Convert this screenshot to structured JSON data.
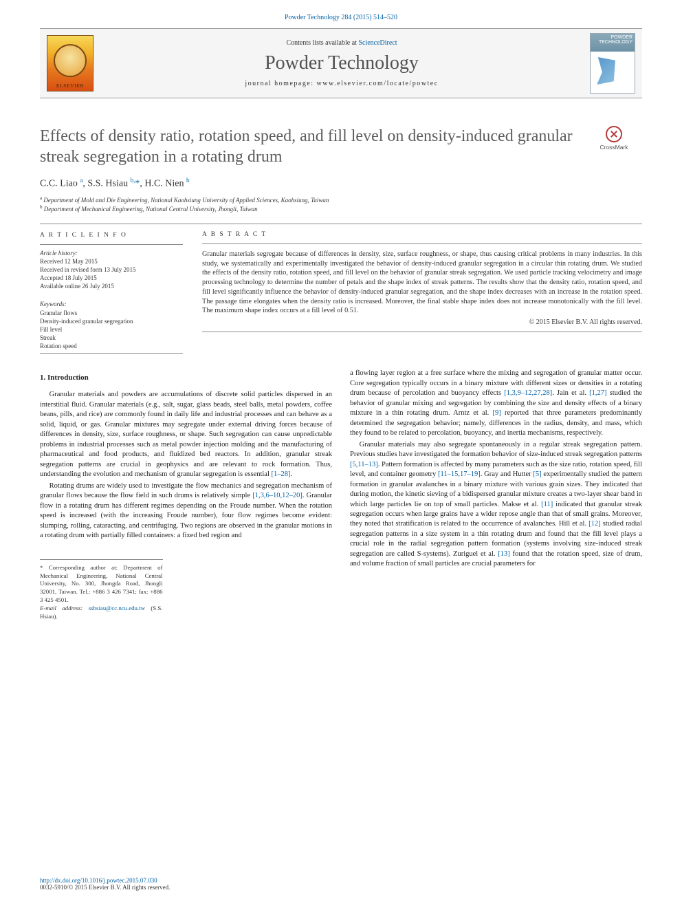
{
  "journal_ref_link": "Powder Technology 284 (2015) 514–520",
  "banner": {
    "contents_prefix": "Contents lists available at ",
    "contents_link": "ScienceDirect",
    "journal_name": "Powder Technology",
    "homepage_label": "journal homepage: www.elsevier.com/locate/powtec",
    "cover_label": "POWDER\nTECHNOLOGY"
  },
  "crossmark_label": "CrossMark",
  "article": {
    "title": "Effects of density ratio, rotation speed, and fill level on density-induced granular streak segregation in a rotating drum",
    "authors_html": "C.C. Liao <sup>a</sup>, S.S. Hsiau <sup>b,</sup><a>*</a>, H.C. Nien <sup>b</sup>",
    "affiliations": [
      {
        "marker": "a",
        "text": "Department of Mold and Die Engineering, National Kaohsiung University of Applied Sciences, Kaohsiung, Taiwan"
      },
      {
        "marker": "b",
        "text": "Department of Mechanical Engineering, National Central University, Jhongli, Taiwan"
      }
    ]
  },
  "article_info": {
    "heading": "A R T I C L E   I N F O",
    "history_label": "Article history:",
    "received": "Received 12 May 2015",
    "revised": "Received in revised form 13 July 2015",
    "accepted": "Accepted 18 July 2015",
    "online": "Available online 26 July 2015",
    "keywords_label": "Keywords:",
    "keywords": [
      "Granular flows",
      "Density-induced granular segregation",
      "Fill level",
      "Streak",
      "Rotation speed"
    ]
  },
  "abstract": {
    "heading": "A B S T R A C T",
    "text": "Granular materials segregate because of differences in density, size, surface roughness, or shape, thus causing critical problems in many industries. In this study, we systematically and experimentally investigated the behavior of density-induced granular segregation in a circular thin rotating drum. We studied the effects of the density ratio, rotation speed, and fill level on the behavior of granular streak segregation. We used particle tracking velocimetry and image processing technology to determine the number of petals and the shape index of streak patterns. The results show that the density ratio, rotation speed, and fill level significantly influence the behavior of density-induced granular segregation, and the shape index decreases with an increase in the rotation speed. The passage time elongates when the density ratio is increased. Moreover, the final stable shape index does not increase monotonically with the fill level. The maximum shape index occurs at a fill level of 0.51.",
    "copyright": "© 2015 Elsevier B.V. All rights reserved."
  },
  "body": {
    "intro_heading": "1. Introduction",
    "p1": "Granular materials and powders are accumulations of discrete solid particles dispersed in an interstitial fluid. Granular materials (e.g., salt, sugar, glass beads, steel balls, metal powders, coffee beans, pills, and rice) are commonly found in daily life and industrial processes and can behave as a solid, liquid, or gas. Granular mixtures may segregate under external driving forces because of differences in density, size, surface roughness, or shape. Such segregation can cause unpredictable problems in industrial processes such as metal powder injection molding and the manufacturing of pharmaceutical and food products, and fluidized bed reactors. In addition, granular streak segregation patterns are crucial in geophysics and are relevant to rock formation. Thus, understanding the evolution and mechanism of granular segregation is essential ",
    "cite1": "[1–28]",
    "p1_tail": ".",
    "p2": "Rotating drums are widely used to investigate the flow mechanics and segregation mechanism of granular flows because the flow field in such drums is relatively simple ",
    "cite2": "[1,3,6–10,12–20]",
    "p2_tail": ". Granular flow in a rotating drum has different regimes depending on the Froude number. When the rotation speed is increased (with the increasing Froude number), four flow regimes become evident: slumping, rolling, cataracting, and centrifuging. Two regions are observed in the granular motions in a rotating drum with partially filled containers: a fixed bed region and ",
    "p3": "a flowing layer region at a free surface where the mixing and segregation of granular matter occur. Core segregation typically occurs in a binary mixture with different sizes or densities in a rotating drum because of percolation and buoyancy effects ",
    "cite3": "[1,3,9–12,27,28]",
    "p3_tail1": ". Jain et al. ",
    "cite4": "[1,27]",
    "p3_tail2": " studied the behavior of granular mixing and segregation by combining the size and density effects of a binary mixture in a thin rotating drum. Arntz et al. ",
    "cite5": "[9]",
    "p3_tail3": " reported that three parameters predominantly determined the segregation behavior; namely, differences in the radius, density, and mass, which they found to be related to percolation, buoyancy, and inertia mechanisms, respectively.",
    "p4": "Granular materials may also segregate spontaneously in a regular streak segregation pattern. Previous studies have investigated the formation behavior of size-induced streak segregation patterns ",
    "cite6": "[5,11–13]",
    "p4_tail1": ". Pattern formation is affected by many parameters such as the size ratio, rotation speed, fill level, and container geometry ",
    "cite7": "[11–15,17–19]",
    "p4_tail2": ". Gray and Hutter ",
    "cite8": "[5]",
    "p4_tail3": " experimentally studied the pattern formation in granular avalanches in a binary mixture with various grain sizes. They indicated that during motion, the kinetic sieving of a bidispersed granular mixture creates a two-layer shear band in which large particles lie on top of small particles. Makse et al. ",
    "cite9": "[11]",
    "p4_tail4": " indicated that granular streak segregation occurs when large grains have a wider repose angle than that of small grains. Moreover, they noted that stratification is related to the occurrence of avalanches. Hill et al. ",
    "cite10": "[12]",
    "p4_tail5": " studied radial segregation patterns in a size system in a thin rotating drum and found that the fill level plays a crucial role in the radial segregation pattern formation (systems involving size-induced streak segregation are called S-systems). Zuriguel et al. ",
    "cite11": "[13]",
    "p4_tail6": " found that the rotation speed, size of drum, and volume fraction of small particles are crucial parameters for"
  },
  "footnotes": {
    "corr": "* Corresponding author at: Department of Mechanical Engineering, National Central University, No. 300, Jhongda Road, Jhongli 32001, Taiwan. Tel.: +886 3 426 7341; fax: +886 3 425 4501.",
    "email_label": "E-mail address: ",
    "email": "sshsiau@cc.ncu.edu.tw",
    "email_tail": " (S.S. Hsiau)."
  },
  "bottom": {
    "doi": "http://dx.doi.org/10.1016/j.powtec.2015.07.030",
    "rights": "0032-5910/© 2015 Elsevier B.V. All rights reserved."
  },
  "colors": {
    "link": "#0061a4",
    "text": "#333333",
    "heading_gray": "#5c5c5c",
    "rule": "#888888"
  }
}
